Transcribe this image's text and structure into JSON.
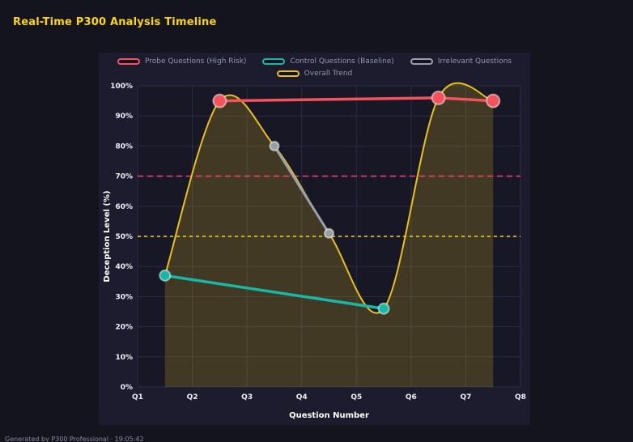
{
  "header": {
    "title": "Real-Time P300 Analysis Timeline"
  },
  "footer": {
    "text": "Generated by P300 Professional · 19:05:42"
  },
  "colors": {
    "page_bg": "#14141f",
    "panel_bg": "#1c1c2e",
    "plot_bg": "#171726",
    "grid": "#2b2b44",
    "tick_text": "#f0f0f6",
    "axis_title_text": "#ffffff",
    "legend_text": "#9297ab",
    "title_accent": "#ffd700"
  },
  "chart_data": {
    "type": "line",
    "title": "Real-Time P300 Analysis Timeline",
    "xlabel": "Question Number",
    "ylabel": "Deception Level (%)",
    "x_ticks": [
      "Q1",
      "Q2",
      "Q3",
      "Q4",
      "Q5",
      "Q6",
      "Q7",
      "Q8"
    ],
    "x_tick_positions": [
      1,
      2,
      3,
      4,
      5,
      6,
      7,
      8
    ],
    "x_range": [
      1,
      8
    ],
    "y_range": [
      0,
      100
    ],
    "y_tick_step": 10,
    "y_tick_suffix": "%",
    "grid": true,
    "legend_position": "top",
    "legend_rows": [
      [
        0,
        1,
        2
      ],
      [
        3
      ]
    ],
    "series": [
      {
        "name": "Probe Questions (High Risk)",
        "color": "#f4525c",
        "points": [
          [
            2.5,
            95
          ],
          [
            6.5,
            96
          ],
          [
            7.5,
            95
          ]
        ],
        "marker_r": 8,
        "line_w": 3.5,
        "smooth": false
      },
      {
        "name": "Control Questions (Baseline)",
        "color": "#17b8a6",
        "points": [
          [
            1.5,
            37
          ],
          [
            5.5,
            26
          ]
        ],
        "marker_r": 6.5,
        "line_w": 3.5,
        "smooth": false
      },
      {
        "name": "Irrelevant Questions",
        "color": "#9aa0a6",
        "points": [
          [
            3.5,
            80
          ],
          [
            4.5,
            51
          ]
        ],
        "marker_r": 5.5,
        "line_w": 3,
        "smooth": false
      },
      {
        "name": "Overall Trend",
        "color": "#e9c217",
        "points": [
          [
            1.5,
            37
          ],
          [
            2.5,
            95
          ],
          [
            3.5,
            80
          ],
          [
            4.5,
            51
          ],
          [
            5.5,
            26
          ],
          [
            6.5,
            96
          ],
          [
            7.5,
            95
          ]
        ],
        "marker_r": 0,
        "line_w": 2,
        "smooth": true,
        "fill": "rgba(233,194,23,0.2)"
      }
    ],
    "thresholds": [
      {
        "value": 70,
        "color": "#f23d6d",
        "dash": "7 5"
      },
      {
        "value": 50,
        "color": "#ffd60a",
        "dash": "4 4"
      }
    ]
  }
}
